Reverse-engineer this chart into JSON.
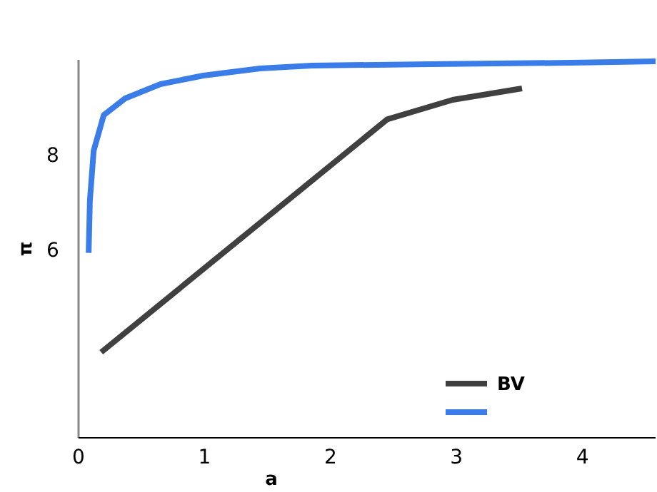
{
  "chart_data": {
    "type": "line",
    "xlabel": "a",
    "ylabel": "π",
    "xlim": [
      0,
      4.58
    ],
    "ylim": [
      2.05,
      10
    ],
    "xticks": [
      0,
      1,
      2,
      3,
      4
    ],
    "yticks": [
      6,
      8
    ],
    "grid": false,
    "legend": "bottom right",
    "series": [
      {
        "name": "BV",
        "color": "#404040",
        "x": [
          0.18,
          2.45,
          2.97,
          3.52
        ],
        "values": [
          3.85,
          8.75,
          9.16,
          9.4
        ]
      },
      {
        "color": "#3b7de8",
        "x": [
          0.08,
          0.09,
          0.12,
          0.2,
          0.37,
          0.65,
          0.99,
          1.44,
          1.85,
          2.79,
          3.91,
          4.58
        ],
        "values": [
          5.94,
          7.04,
          8.09,
          8.84,
          9.19,
          9.49,
          9.67,
          9.82,
          9.88,
          9.91,
          9.94,
          9.97
        ]
      }
    ]
  }
}
